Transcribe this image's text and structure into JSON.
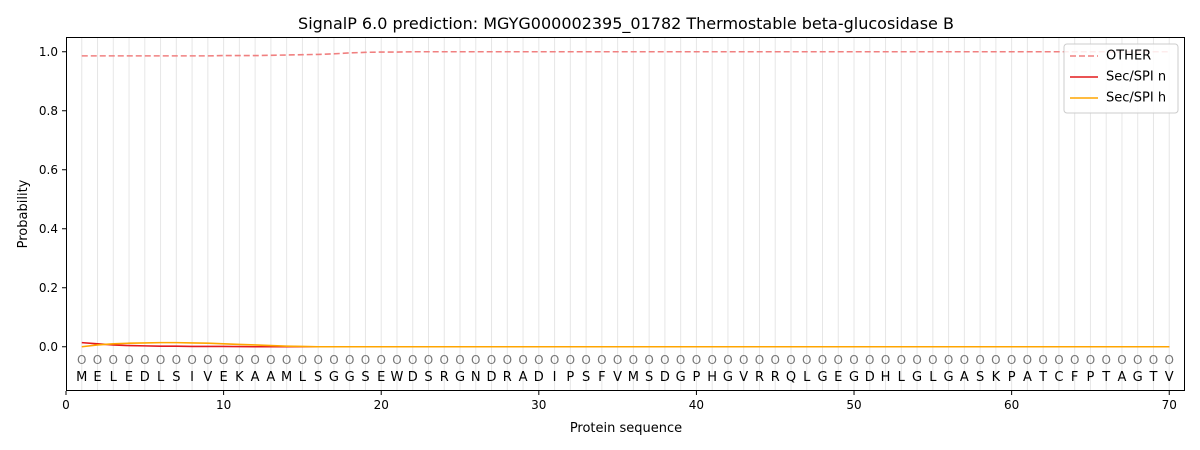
{
  "chart_data": {
    "type": "line",
    "title": "SignalP 6.0 prediction: MGYG000002395_01782 Thermostable beta-glucosidase B",
    "xlabel": "Protein sequence",
    "ylabel": "Probability",
    "xlim": [
      0,
      71
    ],
    "ylim": [
      -0.15,
      1.05
    ],
    "xticks": [
      0,
      10,
      20,
      30,
      40,
      50,
      60,
      70
    ],
    "yticks": [
      0.0,
      0.2,
      0.4,
      0.6,
      0.8,
      1.0
    ],
    "x_tick_labels": [
      "0",
      "10",
      "20",
      "30",
      "40",
      "50",
      "60",
      "70"
    ],
    "y_tick_labels": [
      "0.0",
      "0.2",
      "0.4",
      "0.6",
      "0.8",
      "1.0"
    ],
    "sequence": [
      "M",
      "E",
      "L",
      "E",
      "D",
      "L",
      "S",
      "I",
      "V",
      "E",
      "K",
      "A",
      "A",
      "M",
      "L",
      "S",
      "G",
      "G",
      "S",
      "E",
      "W",
      "D",
      "S",
      "R",
      "G",
      "N",
      "D",
      "R",
      "A",
      "D",
      "I",
      "P",
      "S",
      "F",
      "V",
      "M",
      "S",
      "D",
      "G",
      "P",
      "H",
      "G",
      "V",
      "R",
      "R",
      "Q",
      "L",
      "G",
      "E",
      "G",
      "D",
      "H",
      "L",
      "G",
      "L",
      "G",
      "A",
      "S",
      "K",
      "P",
      "A",
      "T",
      "C",
      "F",
      "P",
      "T",
      "A",
      "G",
      "T",
      "V"
    ],
    "predicted_label": "O",
    "legend": {
      "position": "top-right",
      "entries": [
        "OTHER",
        "Sec/SPI n",
        "Sec/SPI h"
      ]
    },
    "series": [
      {
        "name": "OTHER",
        "color": "#f08080",
        "style": "dashed",
        "points": [
          [
            1,
            0.986
          ],
          [
            2,
            0.986
          ],
          [
            3,
            0.986
          ],
          [
            4,
            0.986
          ],
          [
            5,
            0.986
          ],
          [
            6,
            0.986
          ],
          [
            7,
            0.986
          ],
          [
            8,
            0.986
          ],
          [
            9,
            0.986
          ],
          [
            10,
            0.987
          ],
          [
            11,
            0.987
          ],
          [
            12,
            0.987
          ],
          [
            13,
            0.988
          ],
          [
            14,
            0.989
          ],
          [
            15,
            0.99
          ],
          [
            16,
            0.991
          ],
          [
            17,
            0.993
          ],
          [
            18,
            0.996
          ],
          [
            19,
            0.998
          ],
          [
            20,
            0.999
          ],
          [
            21,
            0.999
          ],
          [
            22,
            1.0
          ],
          [
            70,
            1.0
          ]
        ]
      },
      {
        "name": "Sec/SPI n",
        "color": "#e41a1c",
        "style": "solid",
        "points": [
          [
            1,
            0.014
          ],
          [
            2,
            0.01
          ],
          [
            3,
            0.006
          ],
          [
            4,
            0.004
          ],
          [
            5,
            0.003
          ],
          [
            6,
            0.002
          ],
          [
            7,
            0.002
          ],
          [
            8,
            0.001
          ],
          [
            9,
            0.001
          ],
          [
            10,
            0.001
          ],
          [
            12,
            0.0
          ],
          [
            70,
            0.0
          ]
        ]
      },
      {
        "name": "Sec/SPI h",
        "color": "#ffa500",
        "style": "solid",
        "points": [
          [
            1,
            0.0
          ],
          [
            2,
            0.006
          ],
          [
            3,
            0.01
          ],
          [
            4,
            0.012
          ],
          [
            5,
            0.013
          ],
          [
            6,
            0.014
          ],
          [
            7,
            0.014
          ],
          [
            8,
            0.013
          ],
          [
            9,
            0.012
          ],
          [
            10,
            0.01
          ],
          [
            11,
            0.008
          ],
          [
            12,
            0.006
          ],
          [
            13,
            0.004
          ],
          [
            14,
            0.002
          ],
          [
            15,
            0.001
          ],
          [
            16,
            0.0
          ],
          [
            70,
            0.0
          ]
        ]
      }
    ]
  }
}
